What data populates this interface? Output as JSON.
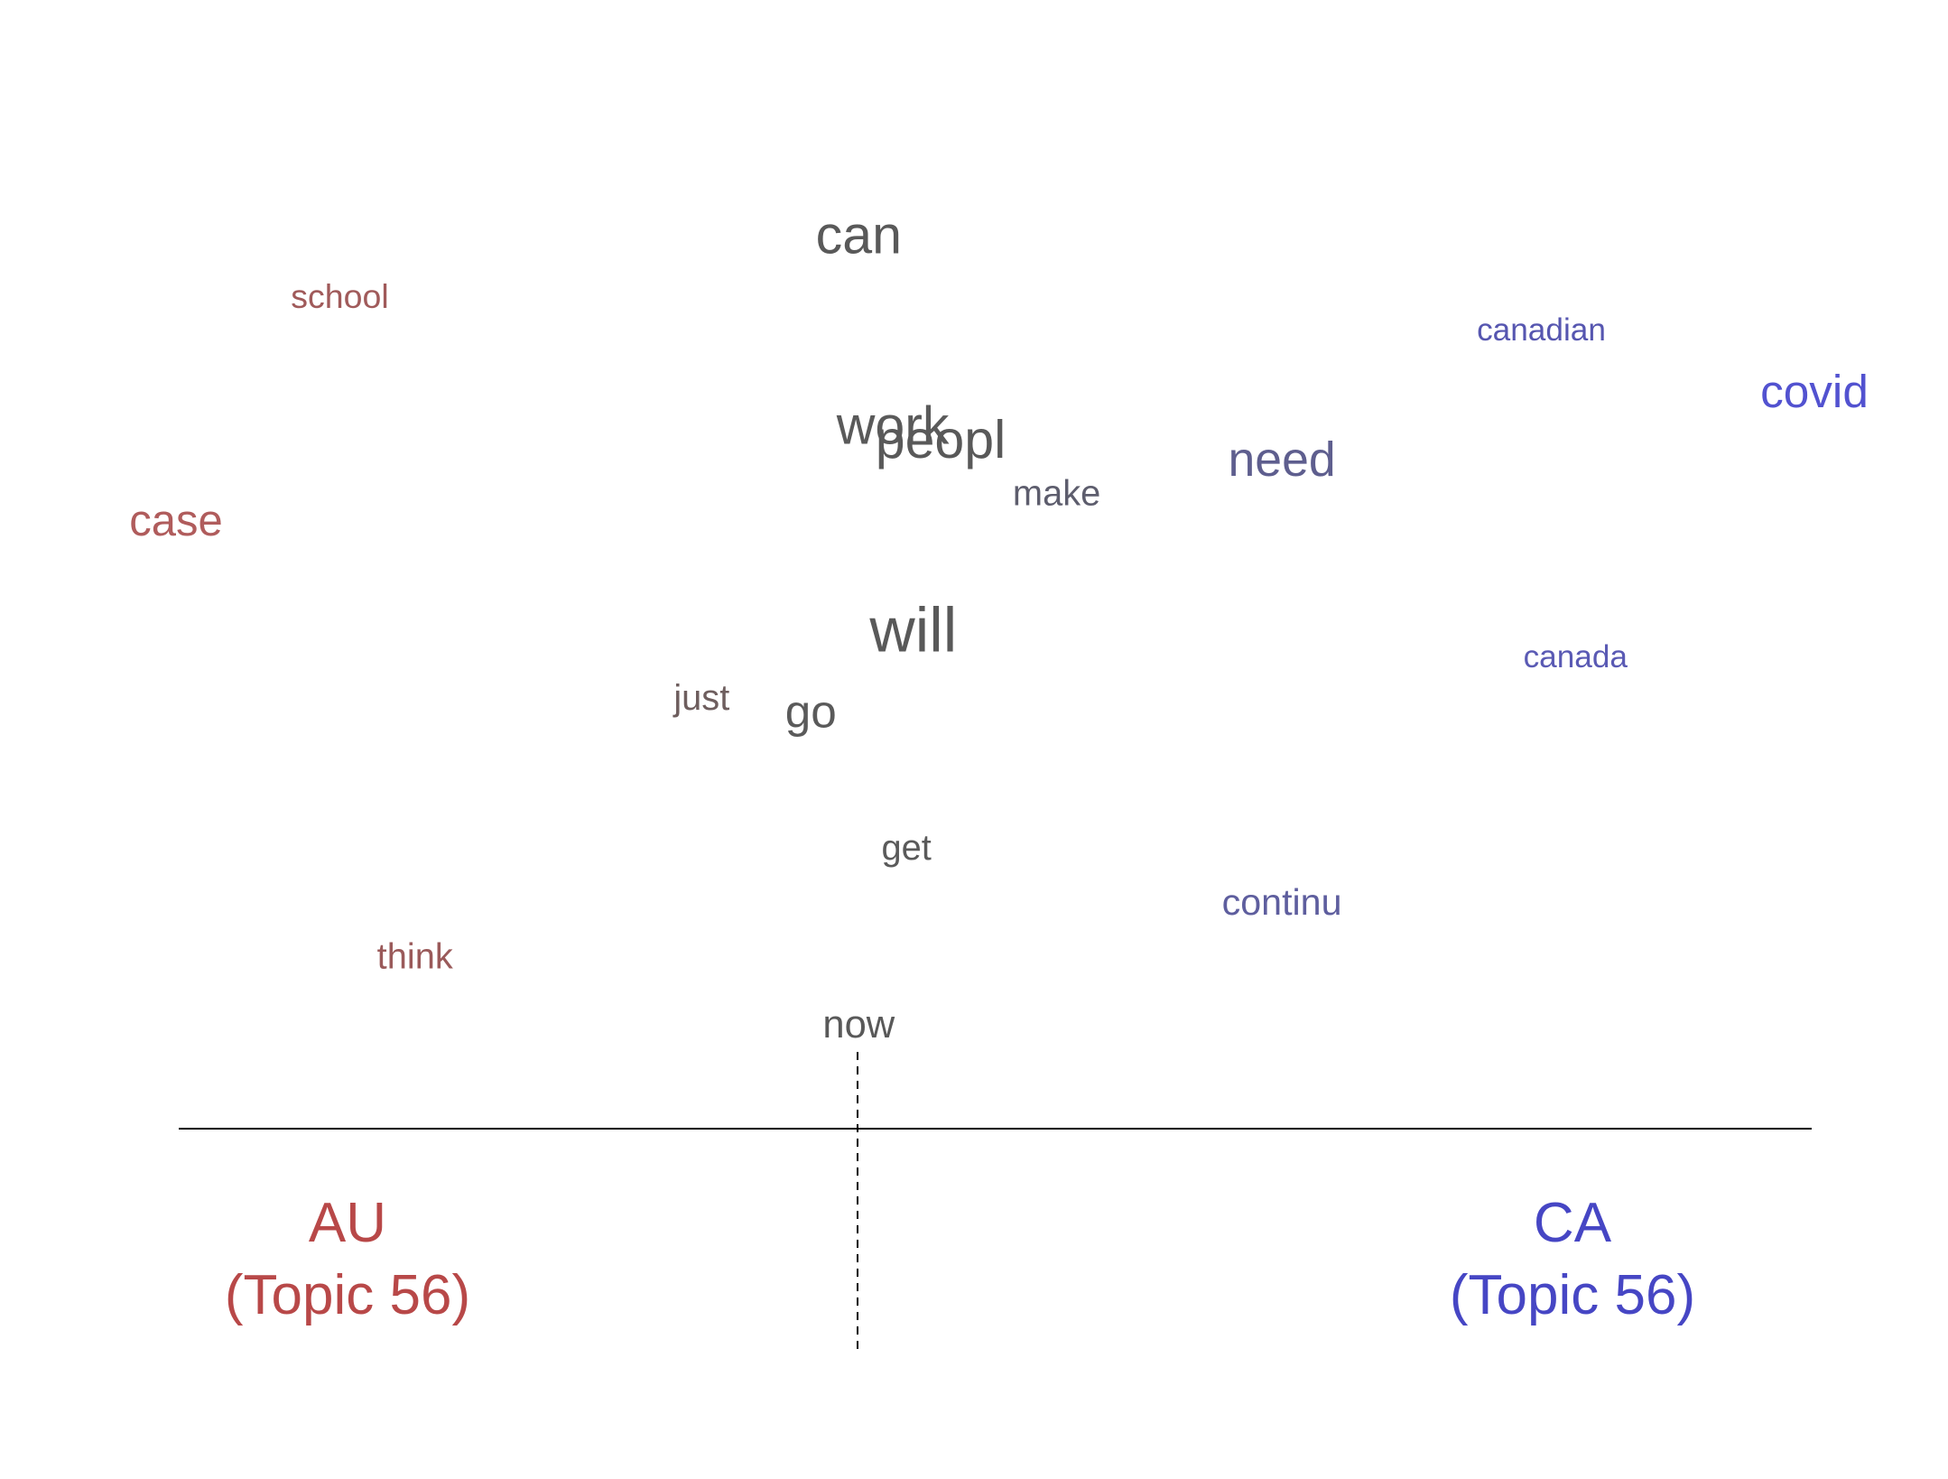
{
  "chart_data": {
    "type": "scatter",
    "title": "",
    "xlabel": "",
    "ylabel": "",
    "description_free": true,
    "groups": {
      "left": {
        "name": "AU",
        "sub": "(Topic 56)",
        "color": "#b84848"
      },
      "right": {
        "name": "CA",
        "sub": "(Topic 56)",
        "color": "#4646c4"
      }
    },
    "words": [
      {
        "text": "can",
        "x": 0.0,
        "y": 0.95,
        "weight": 0.72,
        "color": "#595959"
      },
      {
        "text": "school",
        "x": -0.76,
        "y": 0.86,
        "weight": 0.25,
        "color": "#a05a5a"
      },
      {
        "text": "canadian",
        "x": 1.0,
        "y": 0.81,
        "weight": 0.2,
        "color": "#5656b0"
      },
      {
        "text": "covid",
        "x": 1.4,
        "y": 0.72,
        "weight": 0.55,
        "color": "#5252d0"
      },
      {
        "text": "work",
        "x": 0.05,
        "y": 0.67,
        "weight": 0.72,
        "color": "#5a5a5a"
      },
      {
        "text": "peopl",
        "x": 0.12,
        "y": 0.65,
        "weight": 0.72,
        "color": "#595959"
      },
      {
        "text": "need",
        "x": 0.62,
        "y": 0.62,
        "weight": 0.6,
        "color": "#5e5e8e"
      },
      {
        "text": "make",
        "x": 0.29,
        "y": 0.57,
        "weight": 0.3,
        "color": "#5d5d6d"
      },
      {
        "text": "case",
        "x": -1.0,
        "y": 0.53,
        "weight": 0.5,
        "color": "#b05c5c"
      },
      {
        "text": "will",
        "x": 0.08,
        "y": 0.37,
        "weight": 0.95,
        "color": "#595959"
      },
      {
        "text": "canada",
        "x": 1.05,
        "y": 0.33,
        "weight": 0.2,
        "color": "#5a5ab4"
      },
      {
        "text": "just",
        "x": -0.23,
        "y": 0.27,
        "weight": 0.3,
        "color": "#6e5e5e"
      },
      {
        "text": "go",
        "x": -0.07,
        "y": 0.25,
        "weight": 0.55,
        "color": "#5a5a5a"
      },
      {
        "text": "get",
        "x": 0.07,
        "y": 0.05,
        "weight": 0.3,
        "color": "#5a5a5a"
      },
      {
        "text": "continu",
        "x": 0.62,
        "y": -0.03,
        "weight": 0.33,
        "color": "#5e5e9e"
      },
      {
        "text": "think",
        "x": -0.65,
        "y": -0.11,
        "weight": 0.3,
        "color": "#9a5a5a"
      },
      {
        "text": "now",
        "x": 0.0,
        "y": -0.21,
        "weight": 0.38,
        "color": "#595959"
      }
    ],
    "xlim": [
      -1.0,
      1.4
    ],
    "ylim": [
      -0.21,
      0.95
    ]
  }
}
